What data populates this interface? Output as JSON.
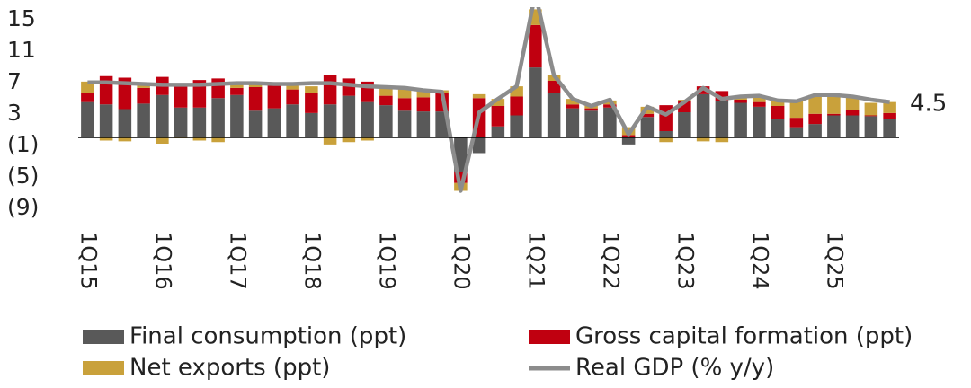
{
  "chart_data": {
    "type": "bar",
    "stacked": true,
    "categories": [
      "1Q15",
      null,
      null,
      null,
      "1Q16",
      null,
      null,
      null,
      "1Q17",
      null,
      null,
      null,
      "1Q18",
      null,
      null,
      null,
      "1Q19",
      null,
      null,
      null,
      "1Q20",
      null,
      null,
      null,
      "1Q21",
      null,
      null,
      null,
      "1Q22",
      null,
      null,
      null,
      "1Q23",
      null,
      null,
      null,
      "1Q24",
      null,
      null,
      null,
      "1Q25",
      null,
      null,
      null
    ],
    "series": [
      {
        "name": "Final consumption (ppt)",
        "color": "#595959",
        "values": [
          4.5,
          4.2,
          3.6,
          4.3,
          5.4,
          3.8,
          3.8,
          5.0,
          5.4,
          3.4,
          3.7,
          4.2,
          3.1,
          4.2,
          5.3,
          4.5,
          4.1,
          3.4,
          3.3,
          3.3,
          -4.4,
          -2.0,
          1.4,
          2.8,
          8.9,
          5.6,
          3.7,
          3.4,
          3.8,
          -0.9,
          2.6,
          0.8,
          3.2,
          5.5,
          4.6,
          4.4,
          3.9,
          2.3,
          1.3,
          1.7,
          2.8,
          2.8,
          2.7,
          2.4
        ]
      },
      {
        "name": "Gross capital formation (ppt)",
        "color": "#c00010",
        "values": [
          1.2,
          3.6,
          4.0,
          2.0,
          2.3,
          2.9,
          3.5,
          2.5,
          0.9,
          3.0,
          2.9,
          1.9,
          2.6,
          3.8,
          2.2,
          2.6,
          1.2,
          1.6,
          1.8,
          2.4,
          -1.4,
          5.0,
          2.6,
          2.4,
          5.4,
          1.6,
          0.5,
          0.3,
          0.4,
          0.3,
          0.4,
          3.3,
          1.5,
          1.0,
          1.3,
          0.4,
          0.6,
          1.7,
          1.2,
          1.3,
          0.2,
          0.7,
          0.1,
          0.7
        ]
      },
      {
        "name": "Net exports (ppt)",
        "color": "#c9a13b",
        "values": [
          1.4,
          -0.4,
          -0.5,
          0.5,
          -0.8,
          -0.1,
          -0.4,
          -0.6,
          0.6,
          0.5,
          0.3,
          0.7,
          0.8,
          -0.9,
          -0.6,
          -0.4,
          1.0,
          1.2,
          0.9,
          0.3,
          -1.0,
          0.5,
          0.9,
          1.3,
          2.0,
          0.7,
          0.7,
          0.5,
          0.5,
          1.0,
          0.9,
          -0.6,
          0.1,
          -0.5,
          -0.6,
          0.4,
          0.8,
          0.7,
          2.1,
          2.4,
          2.4,
          1.7,
          1.6,
          1.4
        ]
      },
      {
        "name": "Real GDP (% y/y)",
        "color": "#8c8c8c",
        "type": "line",
        "values": [
          7.0,
          7.0,
          6.9,
          6.8,
          6.7,
          6.7,
          6.7,
          6.8,
          6.9,
          6.9,
          6.8,
          6.8,
          6.9,
          6.9,
          6.7,
          6.5,
          6.4,
          6.3,
          6.0,
          5.8,
          -6.8,
          3.2,
          4.9,
          6.5,
          18.3,
          7.9,
          4.9,
          4.0,
          4.8,
          0.4,
          3.9,
          2.9,
          4.5,
          6.3,
          4.9,
          5.2,
          5.3,
          4.7,
          4.6,
          5.4,
          5.4,
          5.2,
          4.8,
          4.5
        ]
      }
    ],
    "ylim": [
      -10,
      16
    ],
    "yticks": [
      15,
      11,
      7,
      3,
      {
        "value": -1,
        "label": "(1)"
      },
      {
        "value": -5,
        "label": "(5)"
      },
      {
        "value": -9,
        "label": "(9)"
      }
    ],
    "annotation": "4.5"
  }
}
